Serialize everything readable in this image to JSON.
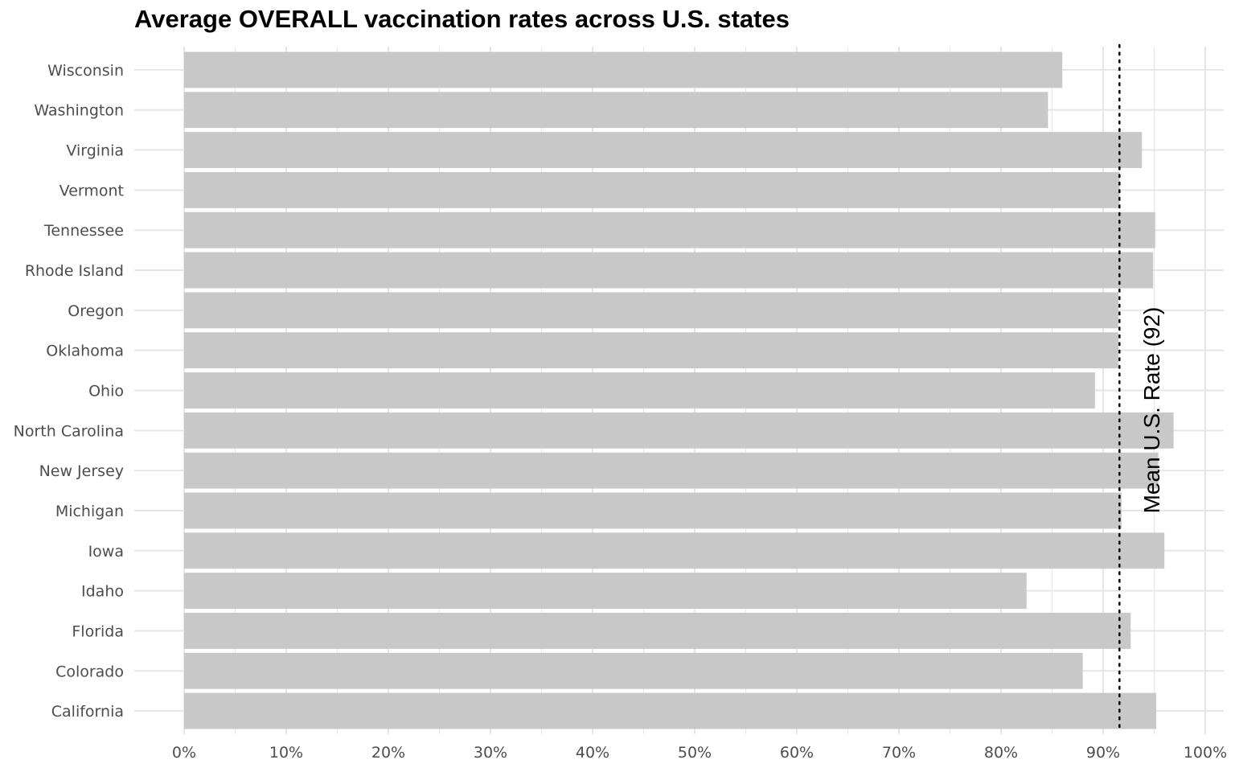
{
  "chart_data": {
    "type": "bar",
    "orientation": "horizontal",
    "title": "Average OVERALL vaccination rates across U.S. states",
    "xlabel": "",
    "ylabel": "",
    "categories": [
      "Wisconsin",
      "Washington",
      "Virginia",
      "Vermont",
      "Tennessee",
      "Rhode Island",
      "Oregon",
      "Oklahoma",
      "Ohio",
      "North Carolina",
      "New Jersey",
      "Michigan",
      "Iowa",
      "Idaho",
      "Florida",
      "Colorado",
      "California"
    ],
    "values": [
      86.0,
      84.6,
      93.8,
      91.6,
      95.1,
      94.9,
      91.5,
      91.5,
      89.2,
      96.9,
      95.4,
      91.8,
      96.0,
      82.5,
      92.7,
      88.0,
      95.2
    ],
    "xlim": [
      0,
      100
    ],
    "x_ticks": [
      0,
      10,
      20,
      30,
      40,
      50,
      60,
      70,
      80,
      90,
      100
    ],
    "x_tick_labels": [
      "0%",
      "10%",
      "20%",
      "30%",
      "40%",
      "50%",
      "60%",
      "70%",
      "80%",
      "90%",
      "100%"
    ],
    "bar_color": "#c8c8c8",
    "grid": true,
    "grid_color": "#e6e6e6",
    "reference_line": {
      "value": 91.6,
      "style": "dotted",
      "color": "#000000",
      "label": "Mean U.S. Rate (92)"
    }
  }
}
